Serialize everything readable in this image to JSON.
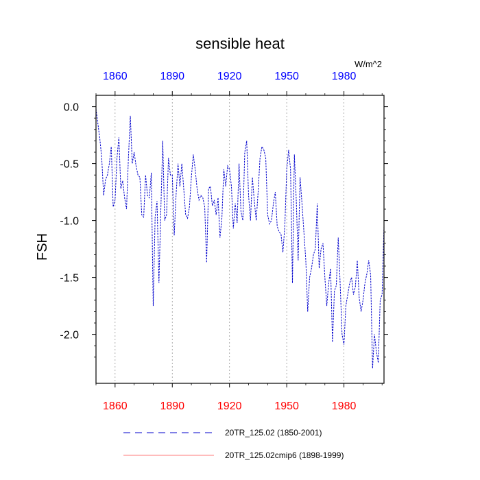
{
  "chart_data": {
    "type": "line",
    "title": "sensible heat",
    "units": "W/m^2",
    "ylabel": "FSH",
    "xlabel": "",
    "xlim": [
      1850,
      2001
    ],
    "ylim": [
      -2.43,
      0.1
    ],
    "x_ticks": [
      1860,
      1890,
      1920,
      1950,
      1980
    ],
    "x_tick_labels": [
      "1860",
      "1890",
      "1920",
      "1950",
      "1980"
    ],
    "y_ticks": [
      0.0,
      -0.5,
      -1.0,
      -1.5,
      -2.0
    ],
    "y_tick_labels": [
      "0.0",
      "-0.5",
      "-1.0",
      "-1.5",
      "-2.0"
    ],
    "top_axis_color": "#0000ff",
    "bottom_axis_color": "#ff0000",
    "grid": "vertical dotted at x ticks",
    "series": [
      {
        "name": "20TR_125.02 (1850-2001)",
        "color": "#0000cc",
        "style": "dashed",
        "x": [
          1850,
          1851,
          1852,
          1853,
          1854,
          1855,
          1856,
          1857,
          1858,
          1859,
          1860,
          1861,
          1862,
          1863,
          1864,
          1865,
          1866,
          1867,
          1868,
          1869,
          1870,
          1871,
          1872,
          1873,
          1874,
          1875,
          1876,
          1877,
          1878,
          1879,
          1880,
          1881,
          1882,
          1883,
          1884,
          1885,
          1886,
          1887,
          1888,
          1889,
          1890,
          1891,
          1892,
          1893,
          1894,
          1895,
          1896,
          1897,
          1898,
          1899,
          1900,
          1901,
          1902,
          1903,
          1904,
          1905,
          1906,
          1907,
          1908,
          1909,
          1910,
          1911,
          1912,
          1913,
          1914,
          1915,
          1916,
          1917,
          1918,
          1919,
          1920,
          1921,
          1922,
          1923,
          1924,
          1925,
          1926,
          1927,
          1928,
          1929,
          1930,
          1931,
          1932,
          1933,
          1934,
          1935,
          1936,
          1937,
          1938,
          1939,
          1940,
          1941,
          1942,
          1943,
          1944,
          1945,
          1946,
          1947,
          1948,
          1949,
          1950,
          1951,
          1952,
          1953,
          1954,
          1955,
          1956,
          1957,
          1958,
          1959,
          1960,
          1961,
          1962,
          1963,
          1964,
          1965,
          1966,
          1967,
          1968,
          1969,
          1970,
          1971,
          1972,
          1973,
          1974,
          1975,
          1976,
          1977,
          1978,
          1979,
          1980,
          1981,
          1982,
          1983,
          1984,
          1985,
          1986,
          1987,
          1988,
          1989,
          1990,
          1991,
          1992,
          1993,
          1994,
          1995,
          1996,
          1997,
          1998,
          1999,
          2000,
          2001
        ],
        "values": [
          -0.02,
          -0.15,
          -0.28,
          -0.45,
          -0.78,
          -0.64,
          -0.6,
          -0.5,
          -0.35,
          -0.88,
          -0.82,
          -0.45,
          -0.27,
          -0.72,
          -0.65,
          -0.8,
          -0.9,
          -0.45,
          -0.08,
          -0.5,
          -0.4,
          -0.52,
          -0.6,
          -0.62,
          -0.95,
          -0.97,
          -0.6,
          -0.78,
          -0.8,
          -0.58,
          -1.75,
          -0.97,
          -0.83,
          -1.55,
          -0.9,
          -0.3,
          -1.0,
          -0.95,
          -0.45,
          -0.6,
          -0.6,
          -1.13,
          -0.77,
          -0.5,
          -0.7,
          -0.5,
          -0.72,
          -0.95,
          -0.98,
          -0.88,
          -0.62,
          -0.42,
          -0.55,
          -0.72,
          -0.82,
          -0.78,
          -0.8,
          -0.88,
          -1.37,
          -0.72,
          -0.7,
          -0.87,
          -0.82,
          -0.95,
          -0.8,
          -1.15,
          -0.98,
          -0.55,
          -0.7,
          -0.52,
          -0.55,
          -0.7,
          -1.07,
          -0.85,
          -1.02,
          -0.5,
          -0.92,
          -1.0,
          -0.4,
          -0.3,
          -0.78,
          -1.0,
          -0.62,
          -0.83,
          -1.0,
          -0.75,
          -0.45,
          -0.35,
          -0.38,
          -0.45,
          -0.95,
          -1.03,
          -1.0,
          -0.85,
          -0.75,
          -1.05,
          -1.1,
          -1.12,
          -1.28,
          -1.05,
          -0.55,
          -0.38,
          -0.55,
          -1.55,
          -0.42,
          -0.82,
          -1.35,
          -0.62,
          -0.85,
          -1.1,
          -1.35,
          -1.8,
          -1.5,
          -1.42,
          -1.3,
          -1.25,
          -0.85,
          -1.42,
          -1.25,
          -1.2,
          -1.5,
          -1.75,
          -1.55,
          -1.42,
          -2.07,
          -1.62,
          -1.57,
          -1.15,
          -1.55,
          -2.0,
          -2.09,
          -1.75,
          -1.65,
          -1.55,
          -1.5,
          -1.65,
          -1.58,
          -1.35,
          -1.68,
          -1.8,
          -1.7,
          -1.55,
          -1.47,
          -1.35,
          -1.48,
          -2.3,
          -2.0,
          -2.15,
          -2.25,
          -1.7,
          -1.65,
          -1.05
        ]
      },
      {
        "name": "20TR_125.02cmip6 (1898-1999)",
        "color": "#ff4d4d",
        "style": "solid",
        "x": [],
        "values": []
      }
    ],
    "legend_placement": "bottom"
  }
}
